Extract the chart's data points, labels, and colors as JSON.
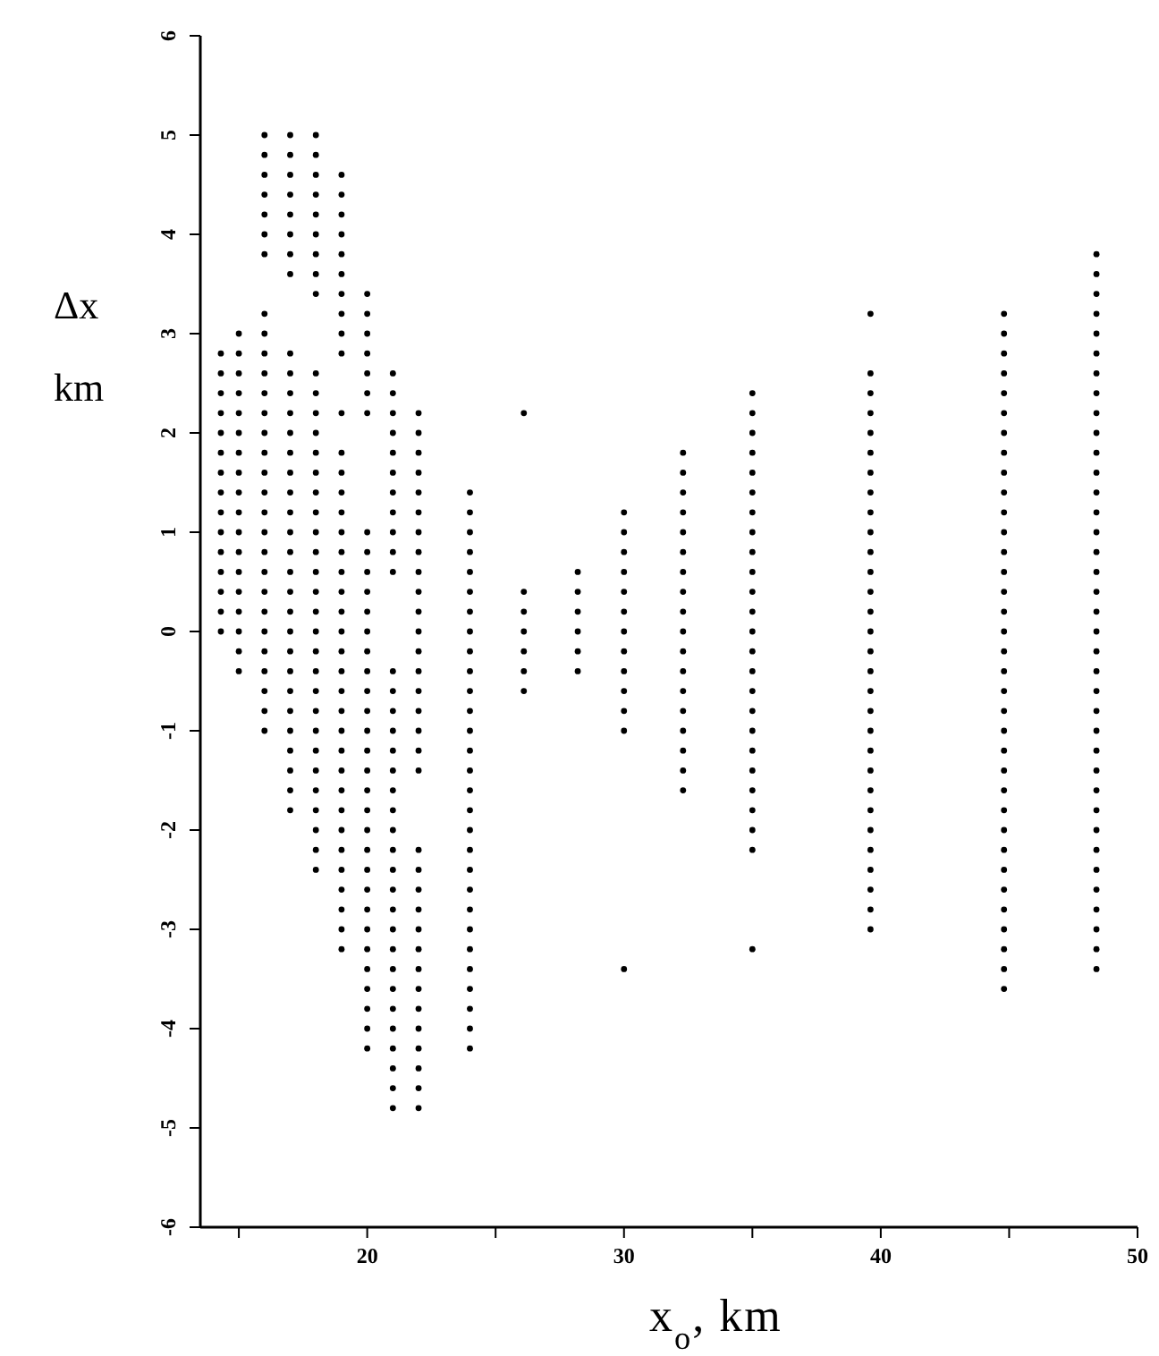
{
  "chart_data": {
    "type": "scatter",
    "xlabel": "x$_{o}$, km",
    "ylabel": "Δx km",
    "xlim": [
      13.5,
      50
    ],
    "xticks": [
      {
        "value": 15,
        "label": null
      },
      20,
      {
        "value": 25,
        "label": null
      },
      30,
      {
        "value": 35,
        "label": null
      },
      40,
      {
        "value": 45,
        "label": null
      },
      50
    ],
    "ylim": [
      -6,
      6
    ],
    "yticks": [
      -6,
      -5,
      -4,
      -3,
      -2,
      -1,
      0,
      1,
      2,
      3,
      4,
      5,
      6
    ],
    "marker": "circle",
    "series": [
      {
        "color": "#000000",
        "x": [
          14.3,
          14.3,
          14.3,
          14.3,
          14.3,
          14.3,
          14.3,
          14.3,
          14.3,
          14.3,
          14.3,
          14.3,
          14.3,
          14.3,
          14.3
        ],
        "values": [
          2.8,
          2.6,
          2.4,
          2.2,
          2.0,
          1.8,
          1.6,
          1.4,
          1.2,
          1.0,
          0.8,
          0.6,
          0.4,
          0.2,
          0.0
        ]
      },
      {
        "color": "#000000",
        "x": [
          15,
          15,
          15,
          15,
          15,
          15,
          15,
          15,
          15,
          15,
          15,
          15,
          15,
          15,
          15,
          15,
          15,
          15
        ],
        "values": [
          3.0,
          2.8,
          2.6,
          2.4,
          2.2,
          2.0,
          1.8,
          1.6,
          1.4,
          1.2,
          1.0,
          0.8,
          0.6,
          0.4,
          0.2,
          0.0,
          -0.2,
          -0.4
        ]
      },
      {
        "color": "#000000",
        "x": [
          16,
          16,
          16,
          16,
          16,
          16,
          16,
          16,
          16,
          16,
          16,
          16,
          16,
          16,
          16,
          16,
          16,
          16,
          16,
          16,
          16,
          16,
          16,
          16,
          16,
          16,
          16,
          16,
          16
        ],
        "values": [
          5.0,
          4.8,
          4.6,
          4.4,
          4.2,
          4.0,
          3.8,
          3.2,
          3.0,
          2.8,
          2.6,
          2.4,
          2.2,
          2.0,
          1.8,
          1.6,
          1.4,
          1.2,
          1.0,
          0.8,
          0.6,
          0.4,
          0.2,
          0.0,
          -0.2,
          -0.4,
          -0.6,
          -0.8,
          -1.0
        ]
      },
      {
        "color": "#000000",
        "x": [
          17,
          17,
          17,
          17,
          17,
          17,
          17,
          17,
          17,
          17,
          17,
          17,
          17,
          17,
          17,
          17,
          17,
          17,
          17,
          17,
          17,
          17,
          17,
          17,
          17,
          17,
          17,
          17,
          17,
          17,
          17,
          17
        ],
        "values": [
          5.0,
          4.8,
          4.6,
          4.4,
          4.2,
          4.0,
          3.8,
          3.6,
          2.8,
          2.6,
          2.4,
          2.2,
          2.0,
          1.8,
          1.6,
          1.4,
          1.2,
          1.0,
          0.8,
          0.6,
          0.4,
          0.2,
          0.0,
          -0.2,
          -0.4,
          -0.6,
          -0.8,
          -1.0,
          -1.2,
          -1.4,
          -1.6,
          -1.8
        ]
      },
      {
        "color": "#000000",
        "x": [
          18,
          18,
          18,
          18,
          18,
          18,
          18,
          18,
          18,
          18,
          18,
          18,
          18,
          18,
          18,
          18,
          18,
          18,
          18,
          18,
          18,
          18,
          18,
          18,
          18,
          18,
          18,
          18,
          18,
          18,
          18,
          18,
          18,
          18,
          18
        ],
        "values": [
          5.0,
          4.8,
          4.6,
          4.4,
          4.2,
          4.0,
          3.8,
          3.6,
          3.4,
          2.6,
          2.4,
          2.2,
          2.0,
          1.8,
          1.6,
          1.4,
          1.2,
          1.0,
          0.8,
          0.6,
          0.4,
          0.2,
          0.0,
          -0.2,
          -0.4,
          -0.6,
          -0.8,
          -1.0,
          -1.2,
          -1.4,
          -1.6,
          -1.8,
          -2.0,
          -2.2,
          -2.4
        ]
      },
      {
        "color": "#000000",
        "x": [
          19,
          19,
          19,
          19,
          19,
          19,
          19,
          19,
          19,
          19,
          19,
          19,
          19,
          19,
          19,
          19,
          19,
          19,
          19,
          19,
          19,
          19,
          19,
          19,
          19,
          19,
          19,
          19,
          19,
          19,
          19,
          19,
          19,
          19,
          19,
          19,
          19
        ],
        "values": [
          4.6,
          4.4,
          4.2,
          4.0,
          3.8,
          3.6,
          3.4,
          3.2,
          3.0,
          2.8,
          2.2,
          1.8,
          1.6,
          1.4,
          1.2,
          1.0,
          0.8,
          0.6,
          0.4,
          0.2,
          0.0,
          -0.2,
          -0.4,
          -0.6,
          -0.8,
          -1.0,
          -1.2,
          -1.4,
          -1.6,
          -1.8,
          -2.0,
          -2.2,
          -2.4,
          -2.6,
          -2.8,
          -3.0,
          -3.2
        ]
      },
      {
        "color": "#000000",
        "x": [
          20,
          20,
          20,
          20,
          20,
          20,
          20,
          20,
          20,
          20,
          20,
          20,
          20,
          20,
          20,
          20,
          20,
          20,
          20,
          20,
          20,
          20,
          20,
          20,
          20,
          20,
          20,
          20,
          20,
          20,
          20,
          20,
          20,
          20
        ],
        "values": [
          3.4,
          3.2,
          3.0,
          2.8,
          2.6,
          2.4,
          2.2,
          1.0,
          0.8,
          0.6,
          0.4,
          0.2,
          0.0,
          -0.2,
          -0.4,
          -0.6,
          -0.8,
          -1.0,
          -1.2,
          -1.4,
          -1.6,
          -1.8,
          -2.0,
          -2.2,
          -2.4,
          -2.6,
          -2.8,
          -3.0,
          -3.2,
          -3.4,
          -3.6,
          -3.8,
          -4.0,
          -4.2
        ]
      },
      {
        "color": "#000000",
        "x": [
          21,
          21,
          21,
          21,
          21,
          21,
          21,
          21,
          21,
          21,
          21,
          21,
          21,
          21,
          21,
          21,
          21,
          21,
          21,
          21,
          21,
          21,
          21,
          21,
          21,
          21,
          21,
          21,
          21,
          21,
          21,
          21,
          21,
          21
        ],
        "values": [
          2.6,
          2.4,
          2.2,
          2.0,
          1.8,
          1.6,
          1.4,
          1.2,
          1.0,
          0.8,
          0.6,
          -0.4,
          -0.6,
          -0.8,
          -1.0,
          -1.2,
          -1.4,
          -1.6,
          -1.8,
          -2.0,
          -2.2,
          -2.4,
          -2.6,
          -2.8,
          -3.0,
          -3.2,
          -3.4,
          -3.6,
          -3.8,
          -4.0,
          -4.2,
          -4.4,
          -4.6,
          -4.8
        ]
      },
      {
        "color": "#000000",
        "x": [
          22,
          22,
          22,
          22,
          22,
          22,
          22,
          22,
          22,
          22,
          22,
          22,
          22,
          22,
          22,
          22,
          22,
          22,
          22,
          22,
          22,
          22,
          22,
          22,
          22,
          22,
          22,
          22,
          22,
          22,
          22,
          22,
          22
        ],
        "values": [
          2.2,
          2.0,
          1.8,
          1.6,
          1.4,
          1.2,
          1.0,
          0.8,
          0.6,
          0.4,
          0.2,
          0.0,
          -0.2,
          -0.4,
          -0.6,
          -0.8,
          -1.0,
          -1.2,
          -1.4,
          -2.2,
          -2.4,
          -2.6,
          -2.8,
          -3.0,
          -3.2,
          -3.4,
          -3.6,
          -3.8,
          -4.0,
          -4.2,
          -4.4,
          -4.6,
          -4.8
        ]
      },
      {
        "color": "#000000",
        "x": [
          24,
          24,
          24,
          24,
          24,
          24,
          24,
          24,
          24,
          24,
          24,
          24,
          24,
          24,
          24,
          24,
          24,
          24,
          24,
          24,
          24,
          24,
          24,
          24,
          24,
          24,
          24,
          24,
          24
        ],
        "values": [
          1.4,
          1.2,
          1.0,
          0.8,
          0.6,
          0.4,
          0.2,
          0.0,
          -0.2,
          -0.4,
          -0.6,
          -0.8,
          -1.0,
          -1.2,
          -1.4,
          -1.6,
          -1.8,
          -2.0,
          -2.2,
          -2.4,
          -2.6,
          -2.8,
          -3.0,
          -3.2,
          -3.4,
          -3.6,
          -3.8,
          -4.0,
          -4.2
        ]
      },
      {
        "color": "#000000",
        "x": [
          26.1,
          26.1,
          26.1,
          26.1,
          26.1,
          26.1,
          26.1
        ],
        "values": [
          2.2,
          0.4,
          0.2,
          0.0,
          -0.2,
          -0.4,
          -0.6
        ]
      },
      {
        "color": "#000000",
        "x": [
          28.2,
          28.2,
          28.2,
          28.2,
          28.2,
          28.2
        ],
        "values": [
          0.6,
          0.4,
          0.2,
          0.0,
          -0.2,
          -0.4
        ]
      },
      {
        "color": "#000000",
        "x": [
          30,
          30,
          30,
          30,
          30,
          30,
          30,
          30,
          30,
          30,
          30,
          30,
          30
        ],
        "values": [
          1.2,
          1.0,
          0.8,
          0.6,
          0.4,
          0.2,
          0.0,
          -0.2,
          -0.4,
          -0.6,
          -0.8,
          -1.0,
          -3.4
        ]
      },
      {
        "color": "#000000",
        "x": [
          32.3,
          32.3,
          32.3,
          32.3,
          32.3,
          32.3,
          32.3,
          32.3,
          32.3,
          32.3,
          32.3,
          32.3,
          32.3,
          32.3,
          32.3,
          32.3,
          32.3,
          32.3
        ],
        "values": [
          1.8,
          1.6,
          1.4,
          1.2,
          1.0,
          0.8,
          0.6,
          0.4,
          0.2,
          0.0,
          -0.2,
          -0.4,
          -0.6,
          -0.8,
          -1.0,
          -1.2,
          -1.4,
          -1.6
        ]
      },
      {
        "color": "#000000",
        "x": [
          35,
          35,
          35,
          35,
          35,
          35,
          35,
          35,
          35,
          35,
          35,
          35,
          35,
          35,
          35,
          35,
          35,
          35,
          35,
          35,
          35,
          35,
          35,
          35,
          35
        ],
        "values": [
          2.4,
          2.2,
          2.0,
          1.8,
          1.6,
          1.4,
          1.2,
          1.0,
          0.8,
          0.6,
          0.4,
          0.2,
          0.0,
          -0.2,
          -0.4,
          -0.6,
          -0.8,
          -1.0,
          -1.2,
          -1.4,
          -1.6,
          -1.8,
          -2.0,
          -2.2,
          -3.2
        ]
      },
      {
        "color": "#000000",
        "x": [
          39.6,
          39.6,
          39.6,
          39.6,
          39.6,
          39.6,
          39.6,
          39.6,
          39.6,
          39.6,
          39.6,
          39.6,
          39.6,
          39.6,
          39.6,
          39.6,
          39.6,
          39.6,
          39.6,
          39.6,
          39.6,
          39.6,
          39.6,
          39.6,
          39.6,
          39.6,
          39.6,
          39.6,
          39.6,
          39.6
        ],
        "values": [
          3.2,
          2.6,
          2.4,
          2.2,
          2.0,
          1.8,
          1.6,
          1.4,
          1.2,
          1.0,
          0.8,
          0.6,
          0.4,
          0.2,
          0.0,
          -0.2,
          -0.4,
          -0.6,
          -0.8,
          -1.0,
          -1.2,
          -1.4,
          -1.6,
          -1.8,
          -2.0,
          -2.2,
          -2.4,
          -2.6,
          -2.8,
          -3.0
        ]
      },
      {
        "color": "#000000",
        "x": [
          44.8,
          44.8,
          44.8,
          44.8,
          44.8,
          44.8,
          44.8,
          44.8,
          44.8,
          44.8,
          44.8,
          44.8,
          44.8,
          44.8,
          44.8,
          44.8,
          44.8,
          44.8,
          44.8,
          44.8,
          44.8,
          44.8,
          44.8,
          44.8,
          44.8,
          44.8,
          44.8,
          44.8,
          44.8,
          44.8,
          44.8,
          44.8,
          44.8,
          44.8,
          44.8
        ],
        "values": [
          3.2,
          3.0,
          2.8,
          2.6,
          2.4,
          2.2,
          2.0,
          1.8,
          1.6,
          1.4,
          1.2,
          1.0,
          0.8,
          0.6,
          0.4,
          0.2,
          0.0,
          -0.2,
          -0.4,
          -0.6,
          -0.8,
          -1.0,
          -1.2,
          -1.4,
          -1.6,
          -1.8,
          -2.0,
          -2.2,
          -2.4,
          -2.6,
          -2.8,
          -3.0,
          -3.2,
          -3.4,
          -3.6
        ]
      },
      {
        "color": "#000000",
        "x": [
          48.4,
          48.4,
          48.4,
          48.4,
          48.4,
          48.4,
          48.4,
          48.4,
          48.4,
          48.4,
          48.4,
          48.4,
          48.4,
          48.4,
          48.4,
          48.4,
          48.4,
          48.4,
          48.4,
          48.4,
          48.4,
          48.4,
          48.4,
          48.4,
          48.4,
          48.4,
          48.4,
          48.4,
          48.4,
          48.4,
          48.4,
          48.4,
          48.4,
          48.4,
          48.4,
          48.4,
          48.4
        ],
        "values": [
          3.8,
          3.6,
          3.4,
          3.2,
          3.0,
          2.8,
          2.6,
          2.4,
          2.2,
          2.0,
          1.8,
          1.6,
          1.4,
          1.2,
          1.0,
          0.8,
          0.6,
          0.4,
          0.2,
          0.0,
          -0.2,
          -0.4,
          -0.6,
          -0.8,
          -1.0,
          -1.2,
          -1.4,
          -1.6,
          -1.8,
          -2.0,
          -2.2,
          -2.4,
          -2.6,
          -2.8,
          -3.0,
          -3.2,
          -3.4
        ]
      }
    ]
  }
}
